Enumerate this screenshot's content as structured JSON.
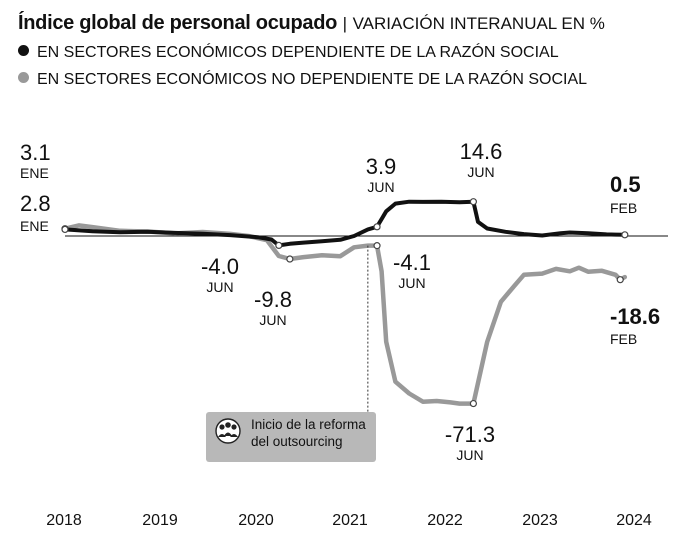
{
  "header": {
    "title": "Índice global de personal ocupado",
    "separator": "|",
    "subtitle": "VARIACIÓN INTERANUAL EN %"
  },
  "chart_data": {
    "type": "line",
    "title": "Índice global de personal ocupado",
    "subtitle": "VARIACIÓN INTERANUAL EN %",
    "x_ticks": [
      "2018",
      "2019",
      "2020",
      "2021",
      "2022",
      "2023",
      "2024"
    ],
    "xlim": [
      2018.0,
      2024.2
    ],
    "ylim": [
      -80,
      20
    ],
    "series": [
      {
        "name": "EN SECTORES ECONÓMICOS DEPENDIENTE DE LA RAZÓN SOCIAL",
        "color": "#111111",
        "x": [
          2018.0,
          2018.3,
          2018.6,
          2018.9,
          2019.2,
          2019.5,
          2019.8,
          2020.1,
          2020.25,
          2020.33,
          2020.45,
          2020.6,
          2020.8,
          2021.0,
          2021.15,
          2021.3,
          2021.4,
          2021.5,
          2021.6,
          2021.75,
          2021.9,
          2022.1,
          2022.3,
          2022.45,
          2022.5,
          2022.6,
          2022.8,
          2023.0,
          2023.2,
          2023.4,
          2023.5,
          2023.7,
          2023.9,
          2024.0,
          2024.1
        ],
        "y": [
          2.8,
          2.0,
          1.6,
          1.8,
          1.3,
          1.0,
          0.4,
          -0.5,
          -1.5,
          -4.0,
          -3.3,
          -2.8,
          -2.2,
          -1.6,
          0.0,
          2.8,
          3.9,
          10.5,
          13.8,
          14.6,
          14.5,
          14.6,
          14.4,
          14.6,
          6.0,
          3.2,
          1.8,
          0.8,
          0.2,
          1.2,
          1.5,
          1.2,
          0.7,
          0.6,
          0.5
        ]
      },
      {
        "name": "EN SECTORES ECONÓMICOS NO DEPENDIENTE DE LA RAZÓN SOCIAL",
        "color": "#999999",
        "x": [
          2018.0,
          2018.15,
          2018.3,
          2018.6,
          2018.9,
          2019.2,
          2019.5,
          2019.8,
          2020.0,
          2020.2,
          2020.33,
          2020.45,
          2020.6,
          2020.8,
          2021.0,
          2021.15,
          2021.3,
          2021.4,
          2021.45,
          2021.5,
          2021.6,
          2021.75,
          2021.9,
          2022.05,
          2022.2,
          2022.3,
          2022.45,
          2022.6,
          2022.75,
          2022.9,
          2023.0,
          2023.2,
          2023.35,
          2023.5,
          2023.6,
          2023.7,
          2023.85,
          2024.0,
          2024.05,
          2024.1
        ],
        "y": [
          3.1,
          4.5,
          3.8,
          2.2,
          1.9,
          1.1,
          1.7,
          0.9,
          0.0,
          -1.8,
          -8.5,
          -9.8,
          -9.0,
          -8.2,
          -8.6,
          -4.8,
          -4.1,
          -4.1,
          -15.0,
          -45.0,
          -62.0,
          -67.0,
          -70.5,
          -70.2,
          -70.8,
          -71.3,
          -71.3,
          -45.0,
          -28.0,
          -21.0,
          -16.5,
          -16.0,
          -14.0,
          -15.0,
          -13.5,
          -15.2,
          -14.8,
          -16.5,
          -18.6,
          -17.5
        ]
      }
    ],
    "labels": [
      {
        "value": "3.1",
        "sub": "ENE",
        "series": 1,
        "x": 2018.0,
        "y": 3.1
      },
      {
        "value": "2.8",
        "sub": "ENE",
        "series": 0,
        "x": 2018.0,
        "y": 2.8
      },
      {
        "value": "-4.0",
        "sub": "JUN",
        "series": 0,
        "x": 2020.33,
        "y": -4.0
      },
      {
        "value": "-9.8",
        "sub": "JUN",
        "series": 1,
        "x": 2020.45,
        "y": -9.8
      },
      {
        "value": "3.9",
        "sub": "JUN",
        "series": 0,
        "x": 2021.4,
        "y": 3.9
      },
      {
        "value": "-4.1",
        "sub": "JUN",
        "series": 1,
        "x": 2021.4,
        "y": -4.1
      },
      {
        "value": "14.6",
        "sub": "JUN",
        "series": 0,
        "x": 2022.45,
        "y": 14.6
      },
      {
        "value": "-71.3",
        "sub": "JUN",
        "series": 1,
        "x": 2022.45,
        "y": -71.3
      },
      {
        "value": "0.5",
        "sub": "FEB",
        "series": 0,
        "x": 2024.1,
        "y": 0.5
      },
      {
        "value": "-18.6",
        "sub": "FEB",
        "series": 1,
        "x": 2024.05,
        "y": -18.6
      }
    ],
    "annotation": {
      "lines": [
        "Inicio de la reforma",
        "del outsourcing"
      ],
      "x": 2021.3,
      "icon": "people-group-icon"
    }
  }
}
